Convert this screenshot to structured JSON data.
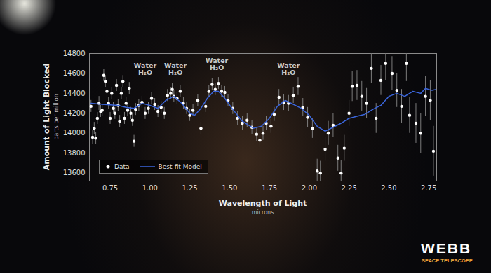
{
  "chart_data": {
    "type": "scatter",
    "x_label": "Wavelength of Light",
    "x_sublabel": "microns",
    "y_label": "Amount of Light Blocked",
    "y_sublabel": "parts per million",
    "xlim": [
      0.62,
      2.8
    ],
    "ylim": [
      13520,
      14800
    ],
    "xticks": [
      {
        "value": 0.75,
        "label": "0.75"
      },
      {
        "value": 1,
        "label": "1.00"
      },
      {
        "value": 1.25,
        "label": "1.25"
      },
      {
        "value": 1.5,
        "label": "1.50"
      },
      {
        "value": 1.75,
        "label": "1.75"
      },
      {
        "value": 2,
        "label": "2.00"
      },
      {
        "value": 2.25,
        "label": "2.25"
      },
      {
        "value": 2.5,
        "label": "2.50"
      },
      {
        "value": 2.75,
        "label": "2.75"
      }
    ],
    "yticks": [
      13600,
      13800,
      14000,
      14200,
      14400,
      14600,
      14800
    ],
    "grid": false,
    "legend": "bottom-left",
    "series": [
      {
        "name": "Data",
        "type": "scatter",
        "color": "#ffffff",
        "marker": "circle",
        "x": [
          0.63,
          0.64,
          0.65,
          0.66,
          0.67,
          0.68,
          0.69,
          0.7,
          0.71,
          0.72,
          0.73,
          0.74,
          0.75,
          0.76,
          0.77,
          0.78,
          0.79,
          0.8,
          0.81,
          0.82,
          0.83,
          0.84,
          0.85,
          0.86,
          0.87,
          0.88,
          0.89,
          0.9,
          0.91,
          0.93,
          0.95,
          0.97,
          0.99,
          1.01,
          1.03,
          1.05,
          1.07,
          1.09,
          1.11,
          1.13,
          1.14,
          1.15,
          1.17,
          1.19,
          1.21,
          1.23,
          1.25,
          1.27,
          1.3,
          1.32,
          1.35,
          1.37,
          1.39,
          1.41,
          1.43,
          1.45,
          1.47,
          1.49,
          1.52,
          1.55,
          1.58,
          1.61,
          1.64,
          1.67,
          1.69,
          1.71,
          1.73,
          1.76,
          1.78,
          1.81,
          1.84,
          1.87,
          1.9,
          1.93,
          1.96,
          1.99,
          2.02,
          2.05,
          2.07,
          2.1,
          2.12,
          2.15,
          2.18,
          2.2,
          2.22,
          2.25,
          2.27,
          2.3,
          2.33,
          2.36,
          2.39,
          2.42,
          2.45,
          2.48,
          2.52,
          2.55,
          2.58,
          2.61,
          2.63,
          2.67,
          2.7,
          2.73,
          2.76,
          2.78
        ],
        "values": [
          14270,
          13960,
          14050,
          13950,
          14150,
          14300,
          14220,
          14230,
          14580,
          14520,
          14420,
          14300,
          14150,
          14400,
          14250,
          14200,
          14480,
          14280,
          14120,
          14400,
          14520,
          14150,
          14300,
          14230,
          14450,
          14200,
          14130,
          13920,
          14240,
          14280,
          14310,
          14200,
          14250,
          14350,
          14290,
          14220,
          14260,
          14200,
          14380,
          14400,
          14440,
          14370,
          14350,
          14420,
          14300,
          14250,
          14180,
          14230,
          14330,
          14050,
          14270,
          14420,
          14490,
          14440,
          14500,
          14420,
          14410,
          14330,
          14250,
          14150,
          14100,
          14130,
          14060,
          13990,
          13930,
          14000,
          14100,
          14070,
          14190,
          14360,
          14310,
          14300,
          14380,
          14470,
          14260,
          14160,
          14050,
          13620,
          13600,
          13840,
          14000,
          14080,
          13750,
          13600,
          13850,
          14200,
          14470,
          14480,
          14370,
          14300,
          14650,
          14150,
          14530,
          14700,
          14600,
          14430,
          14270,
          14700,
          14180,
          14100,
          14000,
          14370,
          14330,
          13820
        ],
        "errors": [
          60,
          70,
          60,
          60,
          60,
          70,
          60,
          60,
          60,
          60,
          60,
          60,
          60,
          60,
          60,
          60,
          60,
          60,
          60,
          60,
          60,
          60,
          60,
          60,
          60,
          60,
          60,
          60,
          60,
          60,
          60,
          60,
          60,
          60,
          60,
          60,
          60,
          60,
          60,
          60,
          60,
          60,
          60,
          60,
          60,
          60,
          60,
          60,
          60,
          60,
          60,
          60,
          60,
          60,
          60,
          60,
          60,
          60,
          60,
          70,
          70,
          70,
          70,
          70,
          70,
          70,
          70,
          70,
          70,
          80,
          80,
          80,
          80,
          90,
          90,
          100,
          100,
          120,
          120,
          120,
          120,
          120,
          130,
          130,
          130,
          130,
          150,
          150,
          150,
          150,
          150,
          150,
          150,
          170,
          170,
          170,
          170,
          180,
          180,
          200,
          200,
          200,
          200,
          250
        ]
      },
      {
        "name": "Best-fit Model",
        "type": "line",
        "color": "#3b66dc",
        "x": [
          0.63,
          0.7,
          0.8,
          0.85,
          0.9,
          0.95,
          1.0,
          1.05,
          1.1,
          1.15,
          1.2,
          1.25,
          1.28,
          1.32,
          1.36,
          1.4,
          1.43,
          1.47,
          1.52,
          1.58,
          1.65,
          1.7,
          1.75,
          1.8,
          1.85,
          1.9,
          1.95,
          2.0,
          2.05,
          2.1,
          2.15,
          2.2,
          2.25,
          2.3,
          2.35,
          2.4,
          2.45,
          2.5,
          2.55,
          2.6,
          2.65,
          2.7,
          2.73,
          2.77,
          2.8
        ],
        "values": [
          14300,
          14290,
          14280,
          14260,
          14250,
          14300,
          14280,
          14250,
          14330,
          14370,
          14300,
          14200,
          14180,
          14250,
          14350,
          14420,
          14420,
          14350,
          14240,
          14120,
          14050,
          14070,
          14150,
          14270,
          14330,
          14290,
          14250,
          14180,
          14070,
          14020,
          14060,
          14100,
          14150,
          14170,
          14190,
          14240,
          14280,
          14370,
          14400,
          14370,
          14420,
          14400,
          14450,
          14430,
          14440
        ]
      }
    ],
    "annotations": [
      {
        "text": "Water",
        "subtext": "H₂O",
        "x": 0.97,
        "y": 14640
      },
      {
        "text": "Water",
        "subtext": "H₂O",
        "x": 1.16,
        "y": 14640
      },
      {
        "text": "Water",
        "subtext": "H₂O",
        "x": 1.42,
        "y": 14690
      },
      {
        "text": "Water",
        "subtext": "H₂O",
        "x": 1.87,
        "y": 14640
      }
    ],
    "logo": {
      "text": "WEBB",
      "subtext": "SPACE TELESCOPE"
    }
  }
}
